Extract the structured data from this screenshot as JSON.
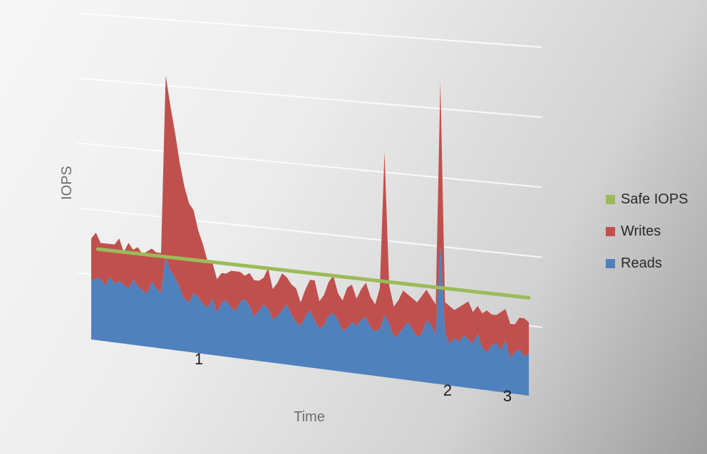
{
  "chart_data": {
    "type": "area",
    "title": "",
    "xlabel": "Time",
    "ylabel": "IOPS",
    "grid": true,
    "stacked": true,
    "legend_position": "right",
    "ylim": [
      0,
      100
    ],
    "annotations": [
      "1",
      "2",
      "3"
    ],
    "series": [
      {
        "name": "Reads",
        "color": "#4f81bd",
        "values": [
          18,
          19,
          19,
          17,
          20,
          18,
          19,
          18,
          17,
          20,
          18,
          17,
          16,
          20,
          18,
          17,
          28,
          24,
          22,
          19,
          16,
          15,
          18,
          17,
          15,
          14,
          17,
          13,
          16,
          17,
          15,
          14,
          17,
          18,
          16,
          13,
          15,
          17,
          16,
          13,
          14,
          16,
          18,
          15,
          13,
          12,
          15,
          17,
          14,
          12,
          13,
          16,
          17,
          15,
          12,
          13,
          15,
          14,
          16,
          17,
          14,
          13,
          14,
          18,
          16,
          12,
          13,
          15,
          17,
          15,
          13,
          14,
          18,
          17,
          14,
          40,
          15,
          12,
          14,
          13,
          15,
          14,
          13,
          16,
          12,
          11,
          13,
          14,
          12,
          15,
          10,
          12,
          13,
          11,
          12
        ]
      },
      {
        "name": "Writes",
        "color": "#c0504d",
        "values": [
          13,
          14,
          11,
          13,
          10,
          12,
          13,
          10,
          14,
          9,
          12,
          11,
          13,
          10,
          11,
          12,
          55,
          50,
          44,
          38,
          34,
          30,
          25,
          20,
          18,
          14,
          11,
          10,
          9,
          8,
          11,
          12,
          9,
          7,
          10,
          11,
          9,
          8,
          12,
          9,
          10,
          11,
          8,
          9,
          10,
          7,
          8,
          9,
          12,
          8,
          9,
          10,
          11,
          8,
          9,
          12,
          11,
          8,
          9,
          10,
          9,
          8,
          12,
          48,
          11,
          9,
          10,
          11,
          8,
          9,
          10,
          11,
          9,
          8,
          9,
          48,
          9,
          11,
          8,
          10,
          9,
          11,
          9,
          8,
          10,
          12,
          9,
          8,
          11,
          9,
          10,
          8,
          9,
          11,
          9
        ]
      },
      {
        "name": "Safe IOPS",
        "color": "#9bbb59",
        "values": [
          28,
          28
        ]
      }
    ]
  }
}
